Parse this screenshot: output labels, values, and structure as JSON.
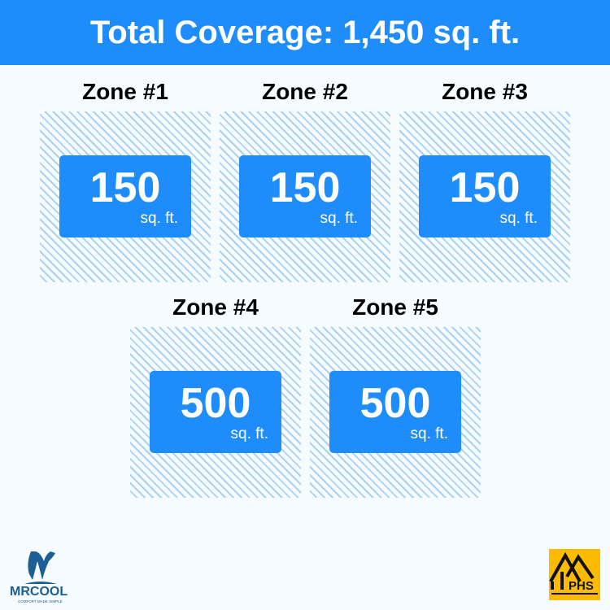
{
  "title": "Total Coverage: 1,450 sq. ft.",
  "zones": [
    {
      "label": "Zone #1",
      "value": "150",
      "unit": "sq. ft."
    },
    {
      "label": "Zone #2",
      "value": "150",
      "unit": "sq. ft."
    },
    {
      "label": "Zone #3",
      "value": "150",
      "unit": "sq. ft."
    },
    {
      "label": "Zone #4",
      "value": "500",
      "unit": "sq. ft."
    },
    {
      "label": "Zone #5",
      "value": "500",
      "unit": "sq. ft."
    }
  ],
  "logos": {
    "left": "MRCOOL",
    "left_tagline": "COMFORT MADE SIMPLE",
    "right": "PHS"
  },
  "colors": {
    "accent": "#1e8cfb",
    "hatch": "#a9d1f7",
    "phs": "#fdbb00",
    "mrcool": "#1b5f93"
  }
}
